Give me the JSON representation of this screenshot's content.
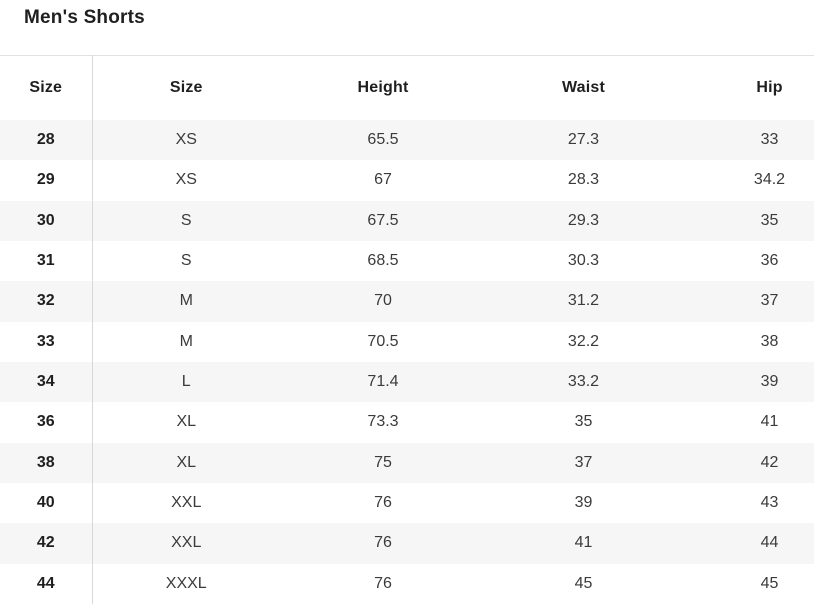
{
  "title": "Men's Shorts",
  "table": {
    "headers": [
      "Size",
      "Size",
      "Height",
      "Waist",
      "Hip"
    ],
    "rows": [
      [
        "28",
        "XS",
        "65.5",
        "27.3",
        "33"
      ],
      [
        "29",
        "XS",
        "67",
        "28.3",
        "34.2"
      ],
      [
        "30",
        "S",
        "67.5",
        "29.3",
        "35"
      ],
      [
        "31",
        "S",
        "68.5",
        "30.3",
        "36"
      ],
      [
        "32",
        "M",
        "70",
        "31.2",
        "37"
      ],
      [
        "33",
        "M",
        "70.5",
        "32.2",
        "38"
      ],
      [
        "34",
        "L",
        "71.4",
        "33.2",
        "39"
      ],
      [
        "36",
        "XL",
        "73.3",
        "35",
        "41"
      ],
      [
        "38",
        "XL",
        "75",
        "37",
        "42"
      ],
      [
        "40",
        "XXL",
        "76",
        "39",
        "43"
      ],
      [
        "42",
        "XXL",
        "76",
        "41",
        "44"
      ],
      [
        "44",
        "XXXL",
        "76",
        "45",
        "45"
      ]
    ]
  },
  "colors": {
    "heading_text": "#1f1f1f",
    "body_text": "#3b3b3b",
    "row_stripe": "#f6f6f6",
    "column_divider": "#d8d8d8",
    "table_top_border": "#e2e2e2"
  }
}
